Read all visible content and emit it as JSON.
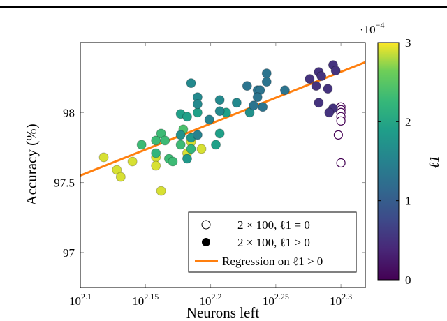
{
  "chart_data": {
    "type": "scatter",
    "xlabel": "Neurons left",
    "ylabel": "Accuracy (%)",
    "xscale": "log10",
    "xlim_log10": [
      2.1,
      2.3187
    ],
    "ylim": [
      96.75,
      98.5
    ],
    "xticks": [
      {
        "v": 2.1,
        "label": "2.1"
      },
      {
        "v": 2.15,
        "label": "2.15"
      },
      {
        "v": 2.2,
        "label": "2.2"
      },
      {
        "v": 2.25,
        "label": "2.25"
      },
      {
        "v": 2.3,
        "label": "2.3"
      }
    ],
    "xtick_base": "10",
    "yticks": [
      {
        "v": 97,
        "label": "97"
      },
      {
        "v": 97.5,
        "label": "97.5"
      },
      {
        "v": 98,
        "label": "98"
      }
    ],
    "colorbar": {
      "label": "ℓ1",
      "multiplier": "·10",
      "multiplier_exp": "−4",
      "range": [
        0,
        3
      ],
      "ticks": [
        "0",
        "1",
        "2",
        "3"
      ],
      "colormap": "viridis"
    },
    "legend": {
      "placement": "bottom-right",
      "entries": [
        {
          "marker": "hollow",
          "text": "2 × 100, ℓ1 = 0"
        },
        {
          "marker": "filled",
          "text": "2 × 100, ℓ1 > 0"
        },
        {
          "marker": "line",
          "text": "Regression on ℓ1 > 0"
        }
      ]
    },
    "regression": {
      "color": "#ff7f0e",
      "x_log10": [
        2.1,
        2.3187
      ],
      "y": [
        97.55,
        98.36
      ]
    },
    "series": [
      {
        "name": "2 × 100, ℓ1 > 0",
        "points": [
          [
            2.118,
            97.68,
            2.9
          ],
          [
            2.128,
            97.59,
            2.9
          ],
          [
            2.131,
            97.54,
            2.9
          ],
          [
            2.14,
            97.65,
            2.9
          ],
          [
            2.158,
            97.68,
            2.9
          ],
          [
            2.158,
            97.62,
            2.9
          ],
          [
            2.162,
            97.44,
            2.9
          ],
          [
            2.185,
            97.79,
            2.9
          ],
          [
            2.193,
            97.74,
            2.9
          ],
          [
            2.182,
            97.71,
            2.9
          ],
          [
            2.147,
            97.77,
            2.3
          ],
          [
            2.158,
            97.8,
            2.3
          ],
          [
            2.162,
            97.85,
            2.3
          ],
          [
            2.165,
            97.8,
            2.3
          ],
          [
            2.158,
            97.71,
            2.2
          ],
          [
            2.168,
            97.67,
            2.3
          ],
          [
            2.171,
            97.65,
            2.3
          ],
          [
            2.177,
            97.77,
            2.3
          ],
          [
            2.179,
            97.88,
            2.4
          ],
          [
            2.185,
            97.74,
            2.2
          ],
          [
            2.177,
            97.99,
            1.9
          ],
          [
            2.182,
            97.97,
            1.9
          ],
          [
            2.19,
            98.0,
            1.9
          ],
          [
            2.177,
            97.84,
            1.7
          ],
          [
            2.185,
            97.82,
            1.8
          ],
          [
            2.182,
            97.67,
            1.8
          ],
          [
            2.204,
            97.77,
            1.9
          ],
          [
            2.207,
            97.85,
            1.9
          ],
          [
            2.212,
            98.0,
            1.9
          ],
          [
            2.185,
            98.21,
            1.6
          ],
          [
            2.19,
            98.11,
            1.6
          ],
          [
            2.19,
            98.06,
            1.6
          ],
          [
            2.207,
            98.09,
            1.6
          ],
          [
            2.207,
            98.01,
            1.6
          ],
          [
            2.199,
            97.95,
            1.5
          ],
          [
            2.19,
            97.84,
            1.5
          ],
          [
            2.22,
            98.07,
            1.6
          ],
          [
            2.23,
            98.0,
            1.7
          ],
          [
            2.228,
            98.19,
            1.3
          ],
          [
            2.236,
            98.16,
            1.3
          ],
          [
            2.238,
            98.16,
            1.3
          ],
          [
            2.236,
            98.11,
            1.3
          ],
          [
            2.243,
            98.28,
            1.3
          ],
          [
            2.243,
            98.22,
            1.3
          ],
          [
            2.233,
            98.05,
            1.3
          ],
          [
            2.24,
            98.04,
            1.3
          ],
          [
            2.257,
            98.16,
            1.3
          ],
          [
            2.276,
            98.24,
            0.5
          ],
          [
            2.283,
            98.29,
            0.5
          ],
          [
            2.285,
            98.26,
            0.5
          ],
          [
            2.281,
            98.19,
            0.5
          ],
          [
            2.29,
            98.17,
            0.5
          ],
          [
            2.294,
            98.34,
            0.5
          ],
          [
            2.296,
            98.3,
            0.5
          ],
          [
            2.283,
            98.07,
            0.5
          ],
          [
            2.294,
            98.03,
            0.5
          ],
          [
            2.291,
            98.0,
            0.5
          ]
        ]
      },
      {
        "name": "2 × 100, ℓ1 = 0",
        "points": [
          [
            2.3,
            98.04,
            0
          ],
          [
            2.3,
            98.02,
            0
          ],
          [
            2.3,
            98.0,
            0
          ],
          [
            2.3,
            97.97,
            0
          ],
          [
            2.3,
            97.94,
            0
          ],
          [
            2.298,
            97.84,
            0
          ],
          [
            2.3,
            97.64,
            0
          ]
        ]
      }
    ]
  }
}
